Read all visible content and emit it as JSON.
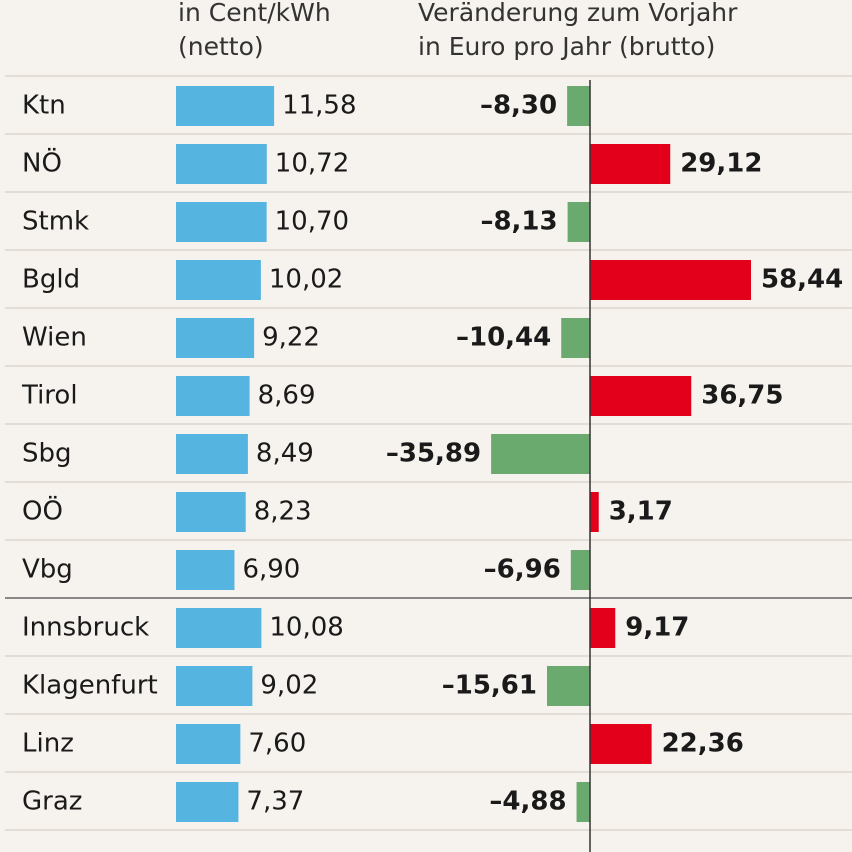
{
  "chart_data": {
    "type": "bar",
    "categories": [
      "Ktn",
      "NÖ",
      "Stmk",
      "Bgld",
      "Wien",
      "Tirol",
      "Sbg",
      "OÖ",
      "Vbg",
      "Innsbruck",
      "Klagenfurt",
      "Linz",
      "Graz"
    ],
    "group_breaks": [
      9
    ],
    "series": [
      {
        "header": [
          "in Cent/kWh",
          "(netto)"
        ],
        "color": "#56b4e0",
        "values": [
          11.58,
          10.72,
          10.7,
          10.02,
          9.22,
          8.69,
          8.49,
          8.23,
          6.9,
          10.08,
          9.02,
          7.6,
          7.37
        ],
        "value_labels": [
          "11,58",
          "10,72",
          "10,70",
          "10,02",
          "9,22",
          "8,69",
          "8,49",
          "8,23",
          "6,90",
          "10,08",
          "9,02",
          "7,60",
          "7,37"
        ]
      },
      {
        "header": [
          "Veränderung zum Vorjahr",
          "in Euro pro Jahr (brutto)"
        ],
        "color": "#e2001a",
        "negative_color": "#6aaa6e",
        "values": [
          -8.3,
          29.12,
          -8.13,
          58.44,
          -10.44,
          36.75,
          -35.89,
          3.17,
          -6.96,
          9.17,
          -15.61,
          22.36,
          -4.88
        ],
        "value_labels": [
          "–8,30",
          "29,12",
          "–8,13",
          "58,44",
          "–10,44",
          "36,75",
          "–35,89",
          "3,17",
          "–6,96",
          "9,17",
          "–15,61",
          "22,36",
          "–4,88"
        ]
      }
    ]
  }
}
